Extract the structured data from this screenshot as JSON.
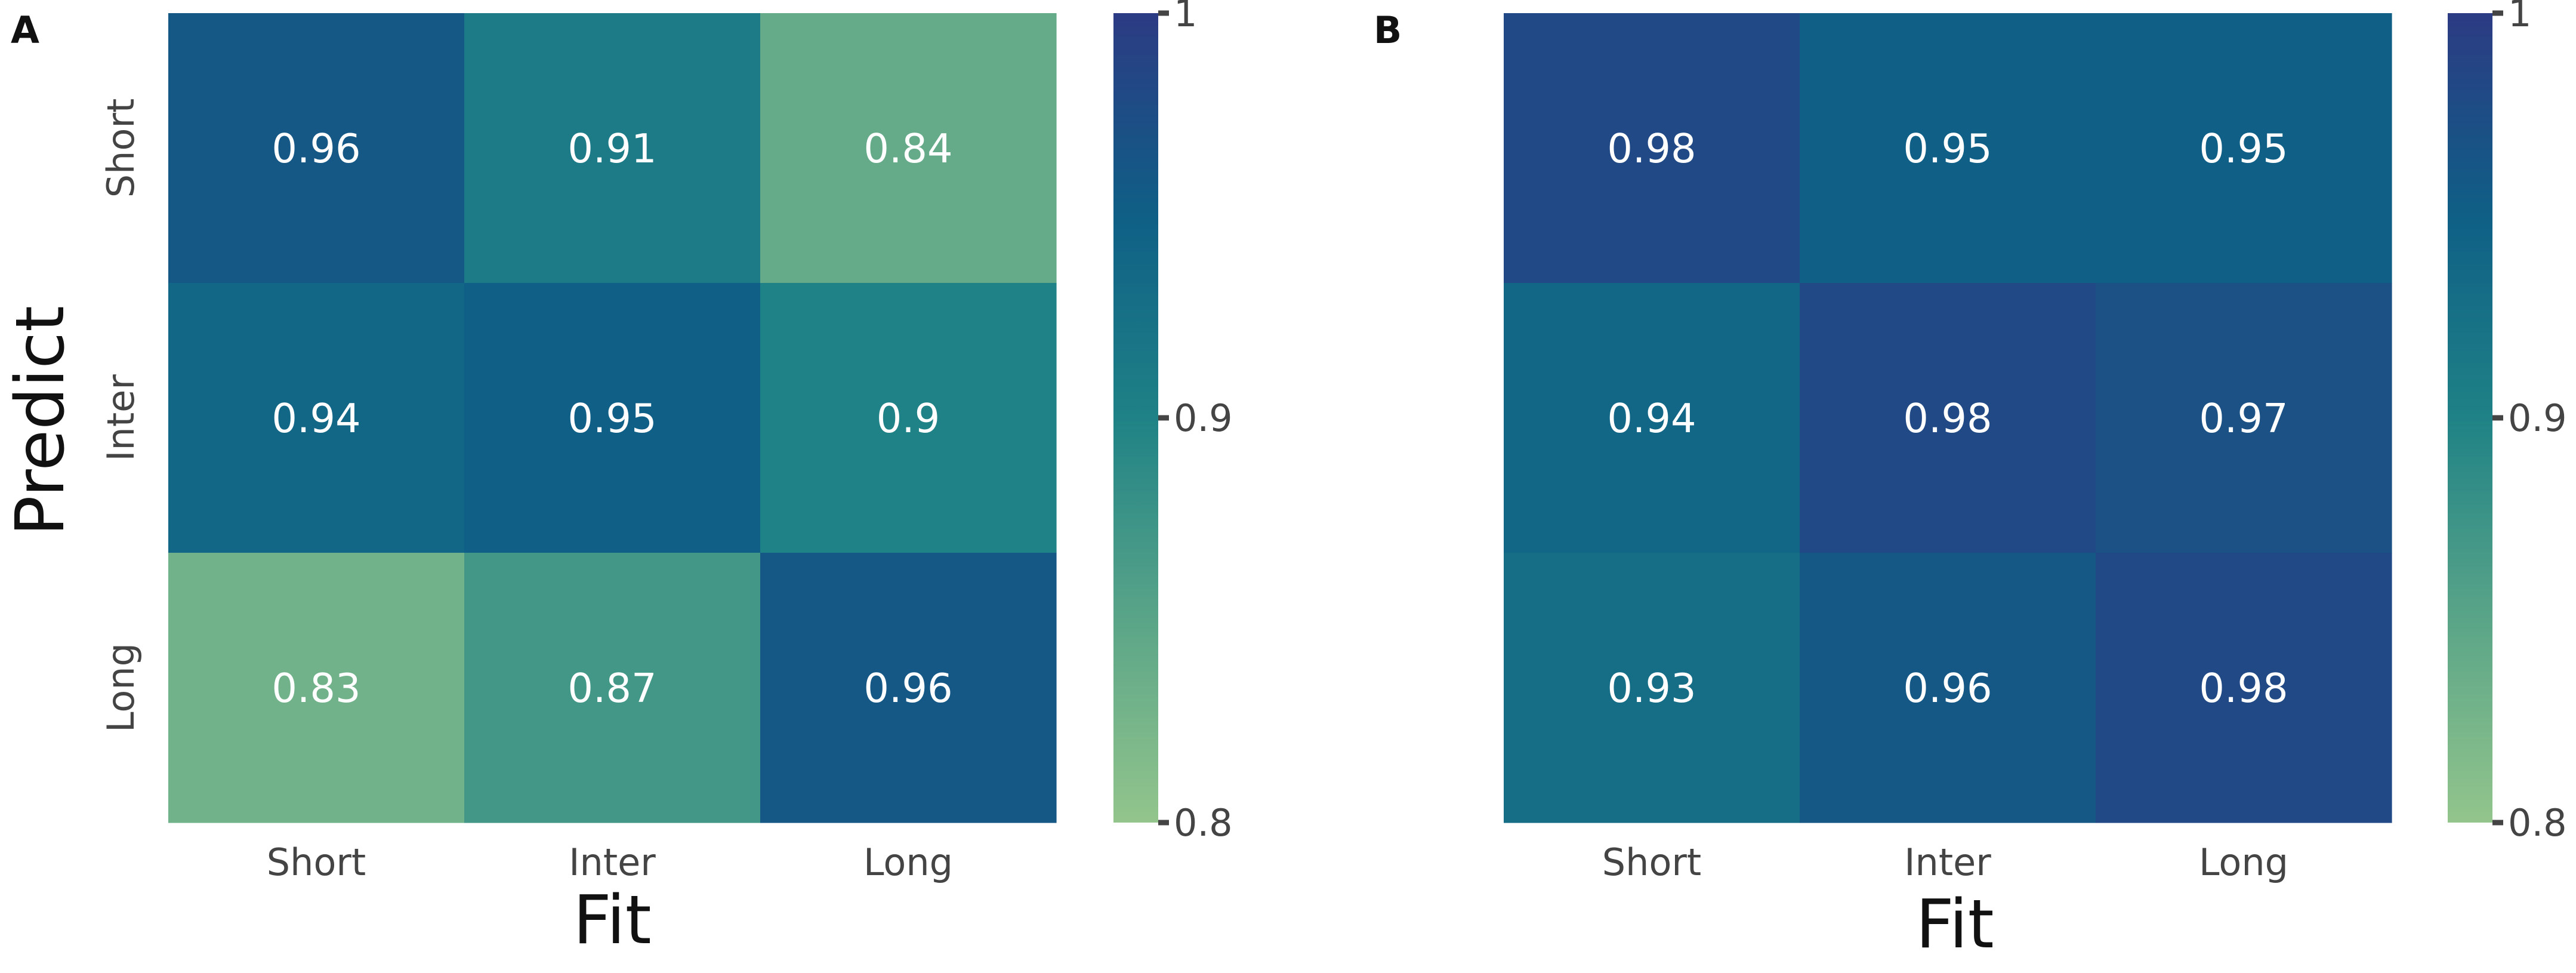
{
  "chart_data": [
    {
      "type": "heatmap",
      "panel_label": "A",
      "x_categories": [
        "Short",
        "Inter",
        "Long"
      ],
      "y_categories": [
        "Short",
        "Inter",
        "Long"
      ],
      "values": [
        [
          0.96,
          0.91,
          0.84
        ],
        [
          0.94,
          0.95,
          0.9
        ],
        [
          0.83,
          0.87,
          0.96
        ]
      ],
      "cell_labels": [
        [
          "0.96",
          "0.91",
          "0.84"
        ],
        [
          "0.94",
          "0.95",
          "0.9"
        ],
        [
          "0.83",
          "0.87",
          "0.96"
        ]
      ],
      "xlabel": "Fit",
      "ylabel": "Predict",
      "colorbar": {
        "range": [
          0.8,
          1
        ],
        "ticks": [
          "1",
          "0.9",
          "0.8"
        ],
        "tick_values": [
          1,
          0.9,
          0.8
        ]
      }
    },
    {
      "type": "heatmap",
      "panel_label": "B",
      "x_categories": [
        "Short",
        "Inter",
        "Long"
      ],
      "y_categories": [],
      "values": [
        [
          0.98,
          0.95,
          0.95
        ],
        [
          0.94,
          0.98,
          0.97
        ],
        [
          0.93,
          0.96,
          0.98
        ]
      ],
      "cell_labels": [
        [
          "0.98",
          "0.95",
          "0.95"
        ],
        [
          "0.94",
          "0.98",
          "0.97"
        ],
        [
          "0.93",
          "0.96",
          "0.98"
        ]
      ],
      "xlabel": "Fit",
      "ylabel": "",
      "colorbar": {
        "range": [
          0.8,
          1
        ],
        "ticks": [
          "1",
          "0.9",
          "0.8"
        ],
        "tick_values": [
          1,
          0.9,
          0.8
        ]
      }
    }
  ],
  "colors": {
    "colormap": "crest",
    "low": "#8fbf8a",
    "mid": "#1e8085",
    "high": "#2c3b84",
    "cell_text": "#ffffff",
    "tick_text": "#444444"
  }
}
